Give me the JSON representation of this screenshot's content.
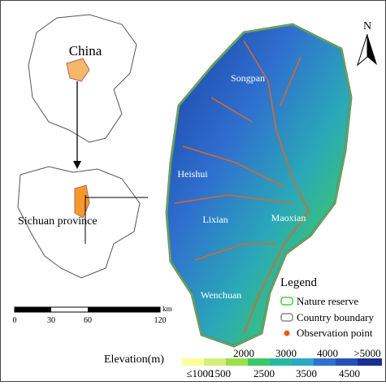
{
  "inset": {
    "country": "China",
    "province": "Sichuan province"
  },
  "map_labels": [
    "Songpan",
    "Heishui",
    "Lixian",
    "Maoxian",
    "Wenchuan"
  ],
  "north": "N",
  "legend": {
    "title": "Legend",
    "items": [
      "Nature reserve",
      "Country boundary",
      "Observation point"
    ]
  },
  "scale_bar": {
    "ticks": [
      "0",
      "30",
      "60",
      "120"
    ],
    "unit": "km"
  },
  "elevation": {
    "title": "Elevation(m)",
    "top_labels": [
      "2000",
      "3000",
      "4000",
      ">5000"
    ],
    "bottom_labels": [
      "≤1000",
      "1500",
      "2500",
      "3500",
      "4500"
    ]
  }
}
